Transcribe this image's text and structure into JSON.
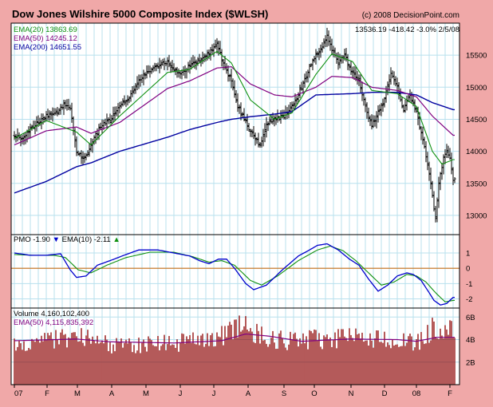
{
  "colors": {
    "frame": "#f0a8a8",
    "plot_bg": "#ffffff",
    "grid": "#b8e0ee",
    "price": "#000000",
    "ema20": "#109010",
    "ema50": "#800080",
    "ema200": "#0000a0",
    "pmo": "#0000cc",
    "pmo_signal": "#109010",
    "zero_line": "#c87018",
    "volume": "#8b0000",
    "vol_ema": "#800080",
    "down_arrow": "#0000cc",
    "up_arrow": "#109010"
  },
  "chart_data": [
    {
      "type": "ohlc",
      "panel": "price",
      "title": "Dow Jones Wilshire 5000 Composite Index ($WLSH)",
      "copyright": "(c) 2008 DecisionPoint.com",
      "last_quote": "13536.19  -418.42  -3.0%  2/5/08",
      "legend": [
        {
          "name": "EMA(20)",
          "value": "13863.69",
          "text": "EMA(20) 13863.69"
        },
        {
          "name": "EMA(50)",
          "value": "14245.12",
          "text": "EMA(50) 14245.12"
        },
        {
          "name": "EMA(200)",
          "value": "14651.55",
          "text": "EMA(200) 14651.55"
        }
      ],
      "ylim": [
        12700,
        16000
      ],
      "yticks": [
        13000,
        13500,
        14000,
        14500,
        15000,
        15500
      ],
      "ytick_labels": [
        "13000",
        "13500",
        "14000",
        "14500",
        "15000",
        "15500"
      ],
      "x_months": [
        "07",
        "F",
        "M",
        "A",
        "M",
        "J",
        "J",
        "A",
        "S",
        "O",
        "N",
        "D",
        "08",
        "F"
      ],
      "month_positions": [
        0,
        20.5,
        39.5,
        61,
        82.5,
        104,
        125,
        146.5,
        169,
        188,
        211,
        232,
        252,
        273
      ],
      "x_range": [
        0,
        276
      ],
      "close_anchors": [
        [
          0,
          14250
        ],
        [
          5,
          14180
        ],
        [
          12,
          14400
        ],
        [
          20,
          14550
        ],
        [
          27,
          14600
        ],
        [
          31,
          14750
        ],
        [
          35,
          14680
        ],
        [
          39,
          14000
        ],
        [
          44,
          13900
        ],
        [
          48,
          14100
        ],
        [
          54,
          14400
        ],
        [
          60,
          14500
        ],
        [
          66,
          14700
        ],
        [
          72,
          14850
        ],
        [
          78,
          15100
        ],
        [
          84,
          15250
        ],
        [
          90,
          15350
        ],
        [
          96,
          15400
        ],
        [
          104,
          15200
        ],
        [
          110,
          15350
        ],
        [
          116,
          15400
        ],
        [
          122,
          15550
        ],
        [
          127,
          15700
        ],
        [
          131,
          15350
        ],
        [
          136,
          15100
        ],
        [
          140,
          14700
        ],
        [
          144,
          14500
        ],
        [
          148,
          14300
        ],
        [
          154,
          14100
        ],
        [
          158,
          14400
        ],
        [
          163,
          14500
        ],
        [
          169,
          14550
        ],
        [
          174,
          14700
        ],
        [
          180,
          15000
        ],
        [
          185,
          15300
        ],
        [
          189,
          15500
        ],
        [
          193,
          15650
        ],
        [
          196,
          15800
        ],
        [
          199,
          15600
        ],
        [
          203,
          15400
        ],
        [
          207,
          15500
        ],
        [
          212,
          15200
        ],
        [
          216,
          15100
        ],
        [
          220,
          14700
        ],
        [
          224,
          14400
        ],
        [
          228,
          14600
        ],
        [
          232,
          14800
        ],
        [
          236,
          15200
        ],
        [
          240,
          15000
        ],
        [
          244,
          14650
        ],
        [
          248,
          14900
        ],
        [
          252,
          14600
        ],
        [
          256,
          14200
        ],
        [
          259,
          13800
        ],
        [
          262,
          13300
        ],
        [
          264,
          12950
        ],
        [
          266,
          13500
        ],
        [
          269,
          13900
        ],
        [
          271,
          14000
        ],
        [
          273,
          13900
        ],
        [
          275,
          13550
        ]
      ],
      "ema20_anchors": [
        [
          0,
          14200
        ],
        [
          20,
          14480
        ],
        [
          39,
          14300
        ],
        [
          48,
          14100
        ],
        [
          66,
          14550
        ],
        [
          96,
          15230
        ],
        [
          110,
          15280
        ],
        [
          127,
          15560
        ],
        [
          136,
          15380
        ],
        [
          148,
          14800
        ],
        [
          163,
          14500
        ],
        [
          174,
          14600
        ],
        [
          189,
          15200
        ],
        [
          199,
          15520
        ],
        [
          212,
          15400
        ],
        [
          224,
          14950
        ],
        [
          240,
          14900
        ],
        [
          252,
          14700
        ],
        [
          262,
          14000
        ],
        [
          268,
          13800
        ],
        [
          275,
          13870
        ]
      ],
      "ema50_anchors": [
        [
          0,
          14100
        ],
        [
          20,
          14320
        ],
        [
          39,
          14380
        ],
        [
          48,
          14280
        ],
        [
          66,
          14450
        ],
        [
          96,
          14980
        ],
        [
          110,
          15100
        ],
        [
          127,
          15300
        ],
        [
          136,
          15320
        ],
        [
          148,
          15050
        ],
        [
          163,
          14880
        ],
        [
          174,
          14850
        ],
        [
          189,
          15000
        ],
        [
          199,
          15170
        ],
        [
          212,
          15150
        ],
        [
          224,
          15000
        ],
        [
          240,
          14950
        ],
        [
          252,
          14850
        ],
        [
          262,
          14550
        ],
        [
          275,
          14250
        ]
      ],
      "ema200_anchors": [
        [
          0,
          13350
        ],
        [
          20,
          13530
        ],
        [
          39,
          13760
        ],
        [
          48,
          13820
        ],
        [
          66,
          14000
        ],
        [
          96,
          14220
        ],
        [
          110,
          14340
        ],
        [
          127,
          14450
        ],
        [
          136,
          14500
        ],
        [
          148,
          14540
        ],
        [
          163,
          14580
        ],
        [
          174,
          14620
        ],
        [
          189,
          14880
        ],
        [
          212,
          14900
        ],
        [
          224,
          14920
        ],
        [
          240,
          14920
        ],
        [
          252,
          14880
        ],
        [
          262,
          14760
        ],
        [
          275,
          14650
        ]
      ]
    },
    {
      "type": "line",
      "panel": "pmo",
      "legend": [
        {
          "name": "PMO",
          "value": "-1.90",
          "text": "PMO -1.90",
          "arrow": "▼"
        },
        {
          "name": "EMA(10)",
          "value": "-2.11",
          "text": "EMA(10) -2.11",
          "arrow": "▲"
        }
      ],
      "ylim": [
        -2.6,
        2.2
      ],
      "yticks": [
        -2,
        -1,
        0,
        1
      ],
      "ytick_labels": [
        "-2",
        "-1",
        "0",
        "1"
      ],
      "pmo_anchors": [
        [
          0,
          1.0
        ],
        [
          10,
          0.85
        ],
        [
          20,
          0.85
        ],
        [
          29,
          0.95
        ],
        [
          35,
          -0.1
        ],
        [
          39,
          -0.6
        ],
        [
          45,
          -0.5
        ],
        [
          52,
          0.2
        ],
        [
          60,
          0.5
        ],
        [
          70,
          0.9
        ],
        [
          78,
          1.2
        ],
        [
          90,
          1.2
        ],
        [
          100,
          1.0
        ],
        [
          110,
          0.8
        ],
        [
          116,
          0.5
        ],
        [
          122,
          0.3
        ],
        [
          128,
          0.6
        ],
        [
          133,
          0.6
        ],
        [
          138,
          0.0
        ],
        [
          145,
          -1.0
        ],
        [
          150,
          -1.4
        ],
        [
          158,
          -1.1
        ],
        [
          168,
          -0.1
        ],
        [
          178,
          0.8
        ],
        [
          185,
          1.2
        ],
        [
          190,
          1.5
        ],
        [
          196,
          1.6
        ],
        [
          203,
          1.2
        ],
        [
          210,
          0.6
        ],
        [
          216,
          0.2
        ],
        [
          222,
          -0.7
        ],
        [
          228,
          -1.5
        ],
        [
          234,
          -1.1
        ],
        [
          240,
          -0.5
        ],
        [
          246,
          -0.3
        ],
        [
          250,
          -0.4
        ],
        [
          255,
          -0.8
        ],
        [
          260,
          -1.6
        ],
        [
          263,
          -2.1
        ],
        [
          267,
          -2.4
        ],
        [
          271,
          -2.3
        ],
        [
          275,
          -1.9
        ]
      ],
      "signal_anchors": [
        [
          0,
          0.9
        ],
        [
          12,
          0.85
        ],
        [
          25,
          0.85
        ],
        [
          32,
          0.7
        ],
        [
          40,
          -0.1
        ],
        [
          48,
          -0.3
        ],
        [
          58,
          0.2
        ],
        [
          70,
          0.7
        ],
        [
          85,
          1.05
        ],
        [
          100,
          1.05
        ],
        [
          112,
          0.75
        ],
        [
          122,
          0.4
        ],
        [
          130,
          0.5
        ],
        [
          138,
          0.2
        ],
        [
          148,
          -0.8
        ],
        [
          155,
          -1.1
        ],
        [
          165,
          -0.5
        ],
        [
          178,
          0.5
        ],
        [
          190,
          1.2
        ],
        [
          198,
          1.45
        ],
        [
          206,
          1.15
        ],
        [
          214,
          0.5
        ],
        [
          222,
          -0.3
        ],
        [
          230,
          -1.1
        ],
        [
          238,
          -0.9
        ],
        [
          246,
          -0.4
        ],
        [
          252,
          -0.5
        ],
        [
          258,
          -0.9
        ],
        [
          264,
          -1.6
        ],
        [
          270,
          -2.2
        ],
        [
          275,
          -2.1
        ]
      ]
    },
    {
      "type": "bar",
      "panel": "volume",
      "legend": [
        {
          "name": "Volume",
          "value": "4,160,102,400",
          "text": "Volume 4,160,102,400"
        },
        {
          "name": "EMA(50)",
          "value": "4,115,835,392",
          "text": "EMA(50) 4,115,835,392"
        }
      ],
      "ylim": [
        0,
        6800000000
      ],
      "yticks": [
        2000000000,
        4000000000,
        6000000000
      ],
      "ytick_labels": [
        "2B",
        "4B",
        "6B"
      ],
      "volume_base_anchors": [
        [
          0,
          3.8
        ],
        [
          20,
          3.9
        ],
        [
          39,
          4.2
        ],
        [
          48,
          3.9
        ],
        [
          60,
          3.5
        ],
        [
          90,
          3.6
        ],
        [
          110,
          3.8
        ],
        [
          125,
          3.9
        ],
        [
          135,
          4.8
        ],
        [
          145,
          5.2
        ],
        [
          155,
          4.3
        ],
        [
          170,
          3.8
        ],
        [
          190,
          4.0
        ],
        [
          210,
          4.1
        ],
        [
          230,
          4.1
        ],
        [
          252,
          3.6
        ],
        [
          262,
          5.0
        ],
        [
          270,
          5.0
        ],
        [
          275,
          4.6
        ]
      ],
      "vol_ema_anchors": [
        [
          0,
          3.9
        ],
        [
          39,
          4.05
        ],
        [
          60,
          3.8
        ],
        [
          100,
          3.7
        ],
        [
          130,
          3.9
        ],
        [
          145,
          4.5
        ],
        [
          160,
          4.3
        ],
        [
          180,
          3.85
        ],
        [
          210,
          4.05
        ],
        [
          240,
          4.0
        ],
        [
          252,
          3.85
        ],
        [
          265,
          4.2
        ],
        [
          275,
          4.2
        ]
      ],
      "last_volume_billion": 4.16
    }
  ]
}
